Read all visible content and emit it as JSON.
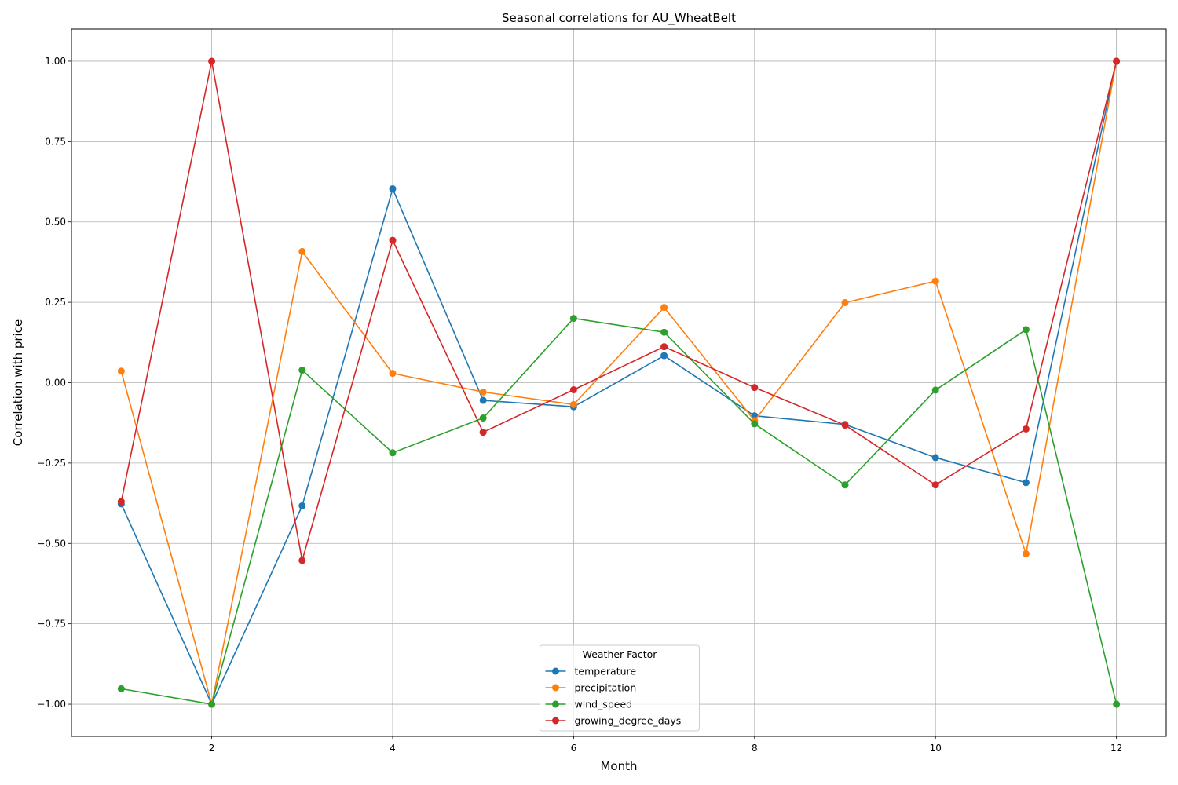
{
  "chart_data": {
    "type": "line",
    "title": "Seasonal correlations for AU_WheatBelt",
    "xlabel": "Month",
    "ylabel": "Correlation with price",
    "xlim": [
      0.45,
      12.55
    ],
    "ylim": [
      -1.1,
      1.1
    ],
    "xticks": [
      2,
      4,
      6,
      8,
      10,
      12
    ],
    "xtick_labels": [
      "2",
      "4",
      "6",
      "8",
      "10",
      "12"
    ],
    "yticks": [
      -1.0,
      -0.75,
      -0.5,
      -0.25,
      0.0,
      0.25,
      0.5,
      0.75,
      1.0
    ],
    "ytick_labels": [
      "−1.00",
      "−0.75",
      "−0.50",
      "−0.25",
      "0.00",
      "0.25",
      "0.50",
      "0.75",
      "1.00"
    ],
    "grid": true,
    "legend": {
      "title": "Weather Factor",
      "position": "lower center"
    },
    "x": [
      1,
      2,
      3,
      4,
      5,
      6,
      7,
      8,
      9,
      10,
      11,
      12
    ],
    "series": [
      {
        "name": "temperature",
        "color": "#1f77b4",
        "values": [
          -0.377,
          -1.0,
          -0.383,
          0.603,
          -0.055,
          -0.075,
          0.084,
          -0.103,
          -0.13,
          -0.233,
          -0.311,
          1.0
        ]
      },
      {
        "name": "precipitation",
        "color": "#ff7f0e",
        "values": [
          0.036,
          -1.0,
          0.408,
          0.029,
          -0.029,
          -0.068,
          0.234,
          -0.118,
          0.249,
          0.316,
          -0.532,
          1.0
        ]
      },
      {
        "name": "wind_speed",
        "color": "#2ca02c",
        "values": [
          -0.952,
          -1.0,
          0.039,
          -0.218,
          -0.11,
          0.2,
          0.157,
          -0.128,
          -0.318,
          -0.023,
          0.165,
          -1.0
        ]
      },
      {
        "name": "growing_degree_days",
        "color": "#d62728",
        "values": [
          -0.37,
          1.0,
          -0.553,
          0.443,
          -0.154,
          -0.022,
          0.112,
          -0.015,
          -0.132,
          -0.318,
          -0.144,
          1.0
        ]
      }
    ]
  }
}
